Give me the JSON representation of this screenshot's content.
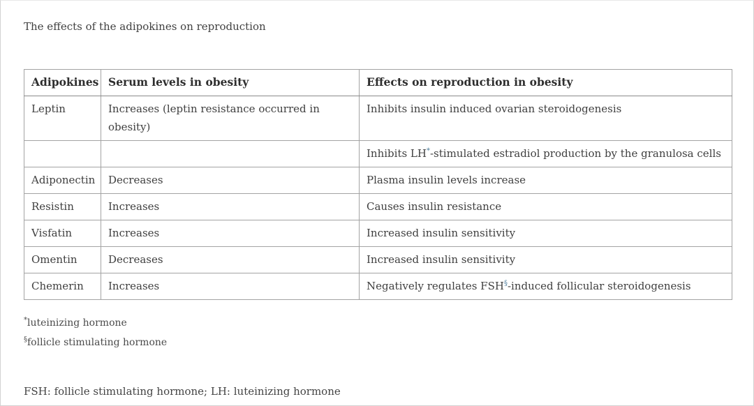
{
  "page": {
    "title": "The effects of the adipokines on reproduction",
    "abbreviation_line": "FSH: follicle stimulating hormone; LH: luteinizing hormone"
  },
  "table": {
    "headers": [
      "Adipokines",
      "Serum levels in obesity",
      "Effects on reproduction in obesity"
    ],
    "rows": [
      {
        "adipokine": "Leptin",
        "serum": "Increases (leptin resistance occurred in obesity)",
        "effect_pre": "Inhibits insulin induced ovarian steroidogenesis",
        "effect_sup": "",
        "effect_post": ""
      },
      {
        "adipokine": "",
        "serum": "",
        "effect_pre": "Inhibits LH",
        "effect_sup": "*",
        "effect_post": "-stimulated estradiol production by the granulosa cells"
      },
      {
        "adipokine": "Adiponectin",
        "serum": "Decreases",
        "effect_pre": "Plasma insulin levels increase",
        "effect_sup": "",
        "effect_post": ""
      },
      {
        "adipokine": "Resistin",
        "serum": "Increases",
        "effect_pre": "Causes insulin resistance",
        "effect_sup": "",
        "effect_post": ""
      },
      {
        "adipokine": "Visfatin",
        "serum": "Increases",
        "effect_pre": "Increased insulin sensitivity",
        "effect_sup": "",
        "effect_post": ""
      },
      {
        "adipokine": "Omentin",
        "serum": "Decreases",
        "effect_pre": "Increased insulin sensitivity",
        "effect_sup": "",
        "effect_post": ""
      },
      {
        "adipokine": "Chemerin",
        "serum": "Increases",
        "effect_pre": "Negatively regulates FSH",
        "effect_sup": "§",
        "effect_post": "-induced follicular steroidogenesis"
      }
    ]
  },
  "footnotes": [
    {
      "marker": "*",
      "text": "luteinizing hormone"
    },
    {
      "marker": "§",
      "text": "follicle stimulating hormone"
    }
  ],
  "colors": {
    "text": "#3f3f3f",
    "superscript_marker": "#4f7f9d",
    "table_outer_border": "#818181",
    "table_inner_border": "#a3a3a3"
  }
}
